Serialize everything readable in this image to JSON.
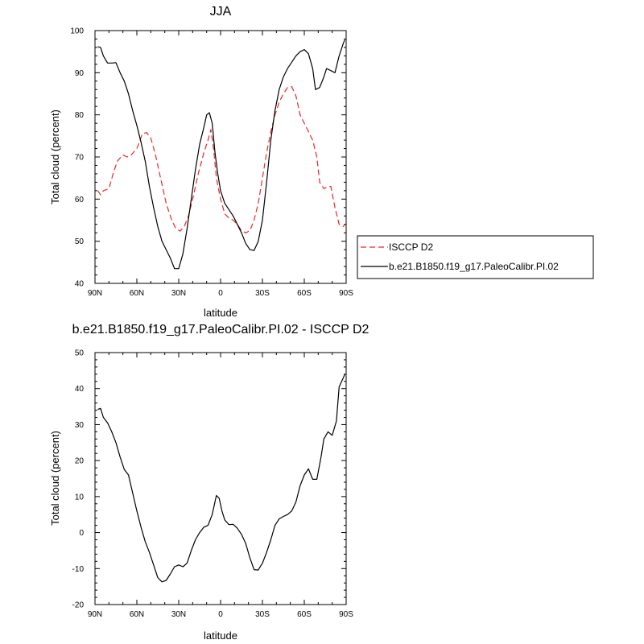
{
  "chart_data": [
    {
      "type": "line",
      "title": "JJA",
      "xlabel": "latitude",
      "ylabel": "Total cloud (percent)",
      "xlim": [
        90,
        -90
      ],
      "ylim": [
        40,
        100
      ],
      "x_ticks": [
        {
          "value": 90,
          "label": "90N"
        },
        {
          "value": 60,
          "label": "60N"
        },
        {
          "value": 30,
          "label": "30N"
        },
        {
          "value": 0,
          "label": "0"
        },
        {
          "value": -30,
          "label": "30S"
        },
        {
          "value": -60,
          "label": "60S"
        },
        {
          "value": -90,
          "label": "90S"
        }
      ],
      "y_ticks": [
        40,
        50,
        60,
        70,
        80,
        90,
        100
      ],
      "legend": {
        "placement": "right"
      },
      "series": [
        {
          "name": "ISCCP D2",
          "color": "#e8262d",
          "dash": "dashed",
          "points": [
            [
              88,
              62
            ],
            [
              86,
              61
            ],
            [
              84,
              62
            ],
            [
              80,
              62.5
            ],
            [
              77,
              66
            ],
            [
              74,
              69
            ],
            [
              70,
              70.5
            ],
            [
              67,
              70
            ],
            [
              64,
              70.5
            ],
            [
              60,
              72
            ],
            [
              56,
              75.5
            ],
            [
              53,
              75.8
            ],
            [
              50,
              74.5
            ],
            [
              47,
              71
            ],
            [
              43,
              65
            ],
            [
              39,
              59
            ],
            [
              35,
              55
            ],
            [
              32,
              53
            ],
            [
              29,
              52.4
            ],
            [
              26,
              53.5
            ],
            [
              23,
              56
            ],
            [
              20,
              60
            ],
            [
              16,
              66
            ],
            [
              12,
              71
            ],
            [
              9,
              74
            ],
            [
              7,
              76.5
            ],
            [
              5,
              72
            ],
            [
              3,
              65
            ],
            [
              0,
              60
            ],
            [
              -3,
              56.5
            ],
            [
              -6,
              55.5
            ],
            [
              -9,
              55
            ],
            [
              -12,
              54
            ],
            [
              -15,
              52.5
            ],
            [
              -18,
              52
            ],
            [
              -21,
              52.5
            ],
            [
              -24,
              55
            ],
            [
              -27,
              59
            ],
            [
              -30,
              65
            ],
            [
              -33,
              71
            ],
            [
              -36,
              76
            ],
            [
              -39,
              80
            ],
            [
              -42,
              83
            ],
            [
              -45,
              85
            ],
            [
              -48,
              86.5
            ],
            [
              -51,
              86.7
            ],
            [
              -54,
              84.5
            ],
            [
              -57,
              80
            ],
            [
              -60,
              78
            ],
            [
              -63,
              76
            ],
            [
              -66,
              74
            ],
            [
              -69,
              70
            ],
            [
              -71,
              64
            ],
            [
              -74,
              62.5
            ],
            [
              -77,
              63
            ],
            [
              -79,
              63
            ],
            [
              -82,
              58
            ],
            [
              -85,
              54
            ],
            [
              -88,
              53.5
            ],
            [
              -89,
              54
            ]
          ]
        },
        {
          "name": "b.e21.B1850.f19_g17.PaleoCalibr.PI.02",
          "color": "#000000",
          "dash": "solid",
          "points": [
            [
              88,
              96.2
            ],
            [
              86,
              96
            ],
            [
              84,
              94
            ],
            [
              81,
              92.3
            ],
            [
              78,
              92.3
            ],
            [
              75,
              92.4
            ],
            [
              72,
              90
            ],
            [
              69,
              88
            ],
            [
              66,
              85
            ],
            [
              63,
              81
            ],
            [
              60,
              77.5
            ],
            [
              57,
              73.5
            ],
            [
              54,
              69
            ],
            [
              51,
              63
            ],
            [
              48,
              58
            ],
            [
              45,
              53.5
            ],
            [
              42,
              50
            ],
            [
              39,
              48
            ],
            [
              36,
              46
            ],
            [
              33,
              43.5
            ],
            [
              30,
              43.5
            ],
            [
              27,
              47
            ],
            [
              24,
              53
            ],
            [
              21,
              60
            ],
            [
              18,
              67
            ],
            [
              15,
              73
            ],
            [
              12,
              77
            ],
            [
              10,
              80
            ],
            [
              8,
              80.5
            ],
            [
              6,
              78
            ],
            [
              4,
              71
            ],
            [
              2,
              66
            ],
            [
              0,
              62
            ],
            [
              -3,
              59
            ],
            [
              -6,
              57.5
            ],
            [
              -9,
              56
            ],
            [
              -12,
              54
            ],
            [
              -15,
              52
            ],
            [
              -18,
              49.5
            ],
            [
              -21,
              48
            ],
            [
              -24,
              47.8
            ],
            [
              -27,
              50
            ],
            [
              -30,
              55
            ],
            [
              -33,
              64
            ],
            [
              -36,
              74
            ],
            [
              -39,
              81
            ],
            [
              -42,
              86
            ],
            [
              -45,
              89
            ],
            [
              -48,
              91
            ],
            [
              -51,
              92.5
            ],
            [
              -54,
              94
            ],
            [
              -57,
              95
            ],
            [
              -60,
              95.5
            ],
            [
              -63,
              94.5
            ],
            [
              -66,
              91
            ],
            [
              -68,
              86
            ],
            [
              -71,
              86.5
            ],
            [
              -74,
              89
            ],
            [
              -76,
              91
            ],
            [
              -79,
              90.5
            ],
            [
              -82,
              90
            ],
            [
              -85,
              94
            ],
            [
              -88,
              97
            ],
            [
              -89,
              97.8
            ]
          ]
        }
      ]
    },
    {
      "type": "line",
      "title": "b.e21.B1850.f19_g17.PaleoCalibr.PI.02 - ISCCP D2",
      "xlabel": "latitude",
      "ylabel": "Total cloud (percent)",
      "xlim": [
        90,
        -90
      ],
      "ylim": [
        -20,
        50
      ],
      "x_ticks": [
        {
          "value": 90,
          "label": "90N"
        },
        {
          "value": 60,
          "label": "60N"
        },
        {
          "value": 30,
          "label": "30N"
        },
        {
          "value": 0,
          "label": "0"
        },
        {
          "value": -30,
          "label": "30S"
        },
        {
          "value": -60,
          "label": "60S"
        },
        {
          "value": -90,
          "label": "90S"
        }
      ],
      "y_ticks": [
        -20,
        -10,
        0,
        10,
        20,
        30,
        40,
        50
      ],
      "series": [
        {
          "color": "#000000",
          "dash": "solid",
          "points": [
            [
              88,
              34.2
            ],
            [
              86,
              34.5
            ],
            [
              84,
              32
            ],
            [
              81,
              30.5
            ],
            [
              78,
              28
            ],
            [
              75,
              25
            ],
            [
              72,
              21
            ],
            [
              69,
              17.5
            ],
            [
              66,
              16
            ],
            [
              63,
              11
            ],
            [
              60,
              6
            ],
            [
              57,
              1.5
            ],
            [
              54,
              -2.5
            ],
            [
              51,
              -5.5
            ],
            [
              48,
              -9
            ],
            [
              45,
              -12.5
            ],
            [
              42,
              -13.7
            ],
            [
              39,
              -13.3
            ],
            [
              36,
              -11.5
            ],
            [
              33,
              -9.5
            ],
            [
              30,
              -9
            ],
            [
              27,
              -9.5
            ],
            [
              24,
              -8.5
            ],
            [
              21,
              -5
            ],
            [
              18,
              -2
            ],
            [
              15,
              0
            ],
            [
              12,
              1.5
            ],
            [
              9,
              2
            ],
            [
              6,
              5
            ],
            [
              3,
              10.3
            ],
            [
              1,
              9.5
            ],
            [
              -1,
              6
            ],
            [
              -3,
              3.5
            ],
            [
              -6,
              2.2
            ],
            [
              -9,
              2.3
            ],
            [
              -12,
              1.2
            ],
            [
              -15,
              -0.5
            ],
            [
              -18,
              -3
            ],
            [
              -21,
              -7
            ],
            [
              -24,
              -10.3
            ],
            [
              -27,
              -10.4
            ],
            [
              -30,
              -8.5
            ],
            [
              -33,
              -5.5
            ],
            [
              -36,
              -2
            ],
            [
              -39,
              2
            ],
            [
              -42,
              3.8
            ],
            [
              -45,
              4.5
            ],
            [
              -48,
              5
            ],
            [
              -51,
              6
            ],
            [
              -54,
              8.5
            ],
            [
              -57,
              13
            ],
            [
              -60,
              16
            ],
            [
              -63,
              17.7
            ],
            [
              -66,
              14.8
            ],
            [
              -69,
              14.8
            ],
            [
              -72,
              21
            ],
            [
              -74,
              26
            ],
            [
              -77,
              28
            ],
            [
              -80,
              27
            ],
            [
              -83,
              31
            ],
            [
              -85,
              40.5
            ],
            [
              -88,
              43
            ],
            [
              -89,
              44
            ]
          ]
        }
      ]
    }
  ]
}
